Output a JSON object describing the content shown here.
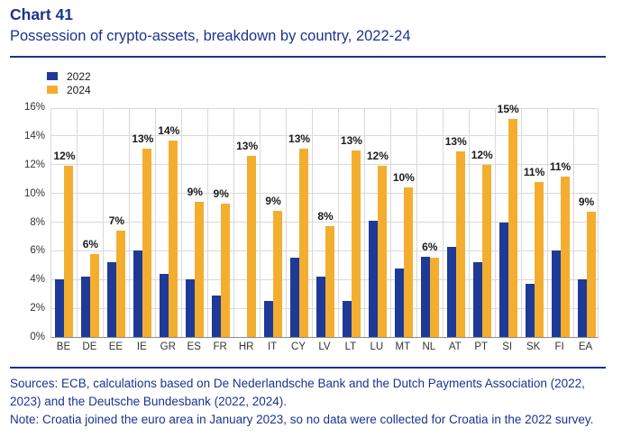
{
  "header": {
    "title": "Chart 41",
    "subtitle": "Possession of crypto-assets, breakdown by country, 2022-24"
  },
  "legend": {
    "items": [
      {
        "label": "2022",
        "color": "#1E3A96"
      },
      {
        "label": "2024",
        "color": "#F4AE2F"
      }
    ]
  },
  "chart_data": {
    "type": "bar",
    "title": "Possession of crypto-assets, breakdown by country, 2022-24",
    "xlabel": "",
    "ylabel": "",
    "ylim": [
      0,
      16
    ],
    "ytick_step": 2,
    "ytick_labels": [
      "0%",
      "2%",
      "4%",
      "6%",
      "8%",
      "10%",
      "12%",
      "14%",
      "16%"
    ],
    "grid": true,
    "legend_position": "top-left",
    "categories": [
      "BE",
      "DE",
      "EE",
      "IE",
      "GR",
      "ES",
      "FR",
      "HR",
      "IT",
      "CY",
      "LV",
      "LT",
      "LU",
      "MT",
      "NL",
      "AT",
      "PT",
      "SI",
      "SK",
      "FI",
      "EA"
    ],
    "series": [
      {
        "name": "2022",
        "color": "#1E3A96",
        "values": [
          4.0,
          4.2,
          5.2,
          6.0,
          4.4,
          4.0,
          2.9,
          null,
          2.5,
          5.5,
          4.2,
          2.5,
          8.1,
          4.8,
          5.6,
          6.3,
          5.2,
          8.0,
          3.7,
          6.0,
          4.0
        ]
      },
      {
        "name": "2024",
        "color": "#F4AE2F",
        "values": [
          11.9,
          5.8,
          7.4,
          13.1,
          13.7,
          9.4,
          9.3,
          12.6,
          8.8,
          13.1,
          7.7,
          13.0,
          11.9,
          10.4,
          5.5,
          12.9,
          12.0,
          15.2,
          10.8,
          11.2,
          8.7
        ],
        "labels": [
          "12%",
          "6%",
          "7%",
          "13%",
          "14%",
          "9%",
          "9%",
          "13%",
          "9%",
          "13%",
          "8%",
          "13%",
          "12%",
          "10%",
          "6%",
          "13%",
          "12%",
          "15%",
          "11%",
          "11%",
          "9%"
        ]
      }
    ],
    "annotation_note": "no 2022 bar for HR"
  },
  "footer": {
    "sources": "Sources: ECB, calculations based on De Nederlandsche Bank and the Dutch Payments Association (2022, 2023) and the Deutsche Bundesbank (2022, 2024).",
    "note": "Note: Croatia joined the euro area in January 2023, so no data were collected for Croatia in the 2022 survey."
  },
  "colors": {
    "navy_text": "#1B3390",
    "bar_2022": "#1E3A96",
    "bar_2024": "#F4AE2F",
    "gridline": "#D9D9D9",
    "axis": "#8C8C8C",
    "tick_text": "#333333",
    "data_label": "#1a1a1a"
  }
}
